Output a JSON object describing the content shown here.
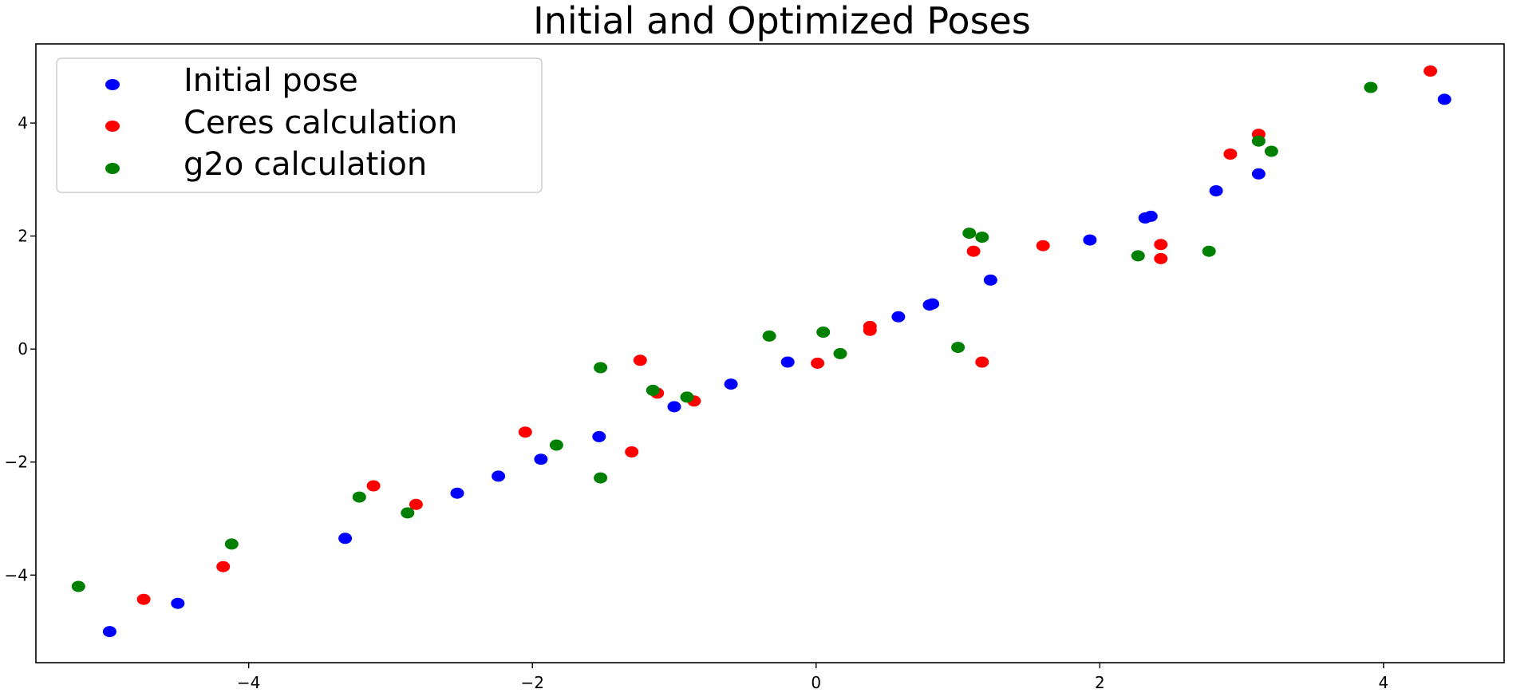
{
  "chart_data": {
    "type": "scatter",
    "title": "Initial and Optimized Poses",
    "xlabel": "",
    "ylabel": "",
    "xlim": [
      -5.5,
      4.85
    ],
    "ylim": [
      -5.55,
      5.4
    ],
    "xticks": [
      -4,
      -2,
      0,
      2,
      4
    ],
    "yticks": [
      -4,
      -2,
      0,
      2,
      4
    ],
    "xtick_labels": [
      "−4",
      "−2",
      "0",
      "2",
      "4"
    ],
    "ytick_labels": [
      "−4",
      "−2",
      "0",
      "2",
      "4"
    ],
    "grid": false,
    "legend_position": "top-left",
    "series": [
      {
        "name": "Initial pose",
        "color": "#0000ff",
        "points": [
          [
            -4.98,
            -5.0
          ],
          [
            -4.5,
            -4.5
          ],
          [
            -3.32,
            -3.35
          ],
          [
            -2.53,
            -2.55
          ],
          [
            -2.24,
            -2.25
          ],
          [
            -1.94,
            -1.95
          ],
          [
            -1.53,
            -1.55
          ],
          [
            -1.0,
            -1.02
          ],
          [
            -0.6,
            -0.62
          ],
          [
            -0.2,
            -0.23
          ],
          [
            0.58,
            0.57
          ],
          [
            0.8,
            0.78
          ],
          [
            0.82,
            0.8
          ],
          [
            1.23,
            1.22
          ],
          [
            1.93,
            1.93
          ],
          [
            2.32,
            2.32
          ],
          [
            2.36,
            2.35
          ],
          [
            2.82,
            2.8
          ],
          [
            3.12,
            3.1
          ],
          [
            4.43,
            4.42
          ]
        ]
      },
      {
        "name": "Ceres calculation",
        "color": "#ff0000",
        "points": [
          [
            -4.74,
            -4.43
          ],
          [
            -4.18,
            -3.85
          ],
          [
            -3.12,
            -2.42
          ],
          [
            -2.82,
            -2.75
          ],
          [
            -2.05,
            -1.47
          ],
          [
            -1.3,
            -1.82
          ],
          [
            -1.24,
            -0.2
          ],
          [
            -1.12,
            -0.78
          ],
          [
            -0.86,
            -0.92
          ],
          [
            0.01,
            -0.25
          ],
          [
            0.38,
            0.4
          ],
          [
            0.38,
            0.33
          ],
          [
            1.11,
            1.73
          ],
          [
            1.17,
            -0.23
          ],
          [
            1.6,
            1.83
          ],
          [
            2.43,
            1.85
          ],
          [
            2.43,
            1.6
          ],
          [
            2.92,
            3.45
          ],
          [
            3.12,
            3.8
          ],
          [
            4.33,
            4.92
          ]
        ]
      },
      {
        "name": "g2o calculation",
        "color": "#008000",
        "points": [
          [
            -5.2,
            -4.2
          ],
          [
            -4.12,
            -3.45
          ],
          [
            -3.22,
            -2.62
          ],
          [
            -2.88,
            -2.9
          ],
          [
            -1.83,
            -1.7
          ],
          [
            -1.52,
            -0.33
          ],
          [
            -1.52,
            -2.28
          ],
          [
            -1.15,
            -0.73
          ],
          [
            -0.91,
            -0.85
          ],
          [
            -0.33,
            0.23
          ],
          [
            0.05,
            0.3
          ],
          [
            0.17,
            -0.08
          ],
          [
            1.0,
            0.03
          ],
          [
            1.08,
            2.05
          ],
          [
            1.17,
            1.98
          ],
          [
            2.27,
            1.65
          ],
          [
            2.77,
            1.73
          ],
          [
            3.12,
            3.68
          ],
          [
            3.21,
            3.5
          ],
          [
            3.91,
            4.63
          ]
        ]
      }
    ]
  }
}
